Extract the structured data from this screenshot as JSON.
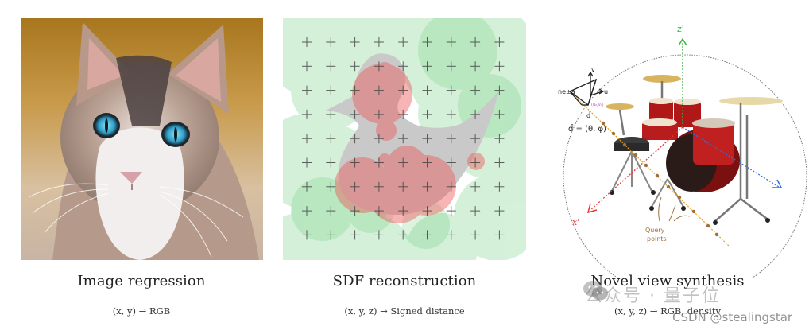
{
  "panels": [
    {
      "id": "image-regression",
      "title": "Image regression",
      "formula": "(x, y) → RGB",
      "visual": "photo of a tabby-and-white kitten with blue eyes on blurred warm background"
    },
    {
      "id": "sdf-reconstruction",
      "title": "SDF reconstruction",
      "formula": "(x, y, z) → Signed distance",
      "visual": "9x9 grid of + sample points over a grey duck silhouette; red circles inside shape, green circles outside",
      "grid": {
        "rows": 9,
        "cols": 9
      },
      "colors": {
        "inside": "#e57373",
        "outside": "#4caf50",
        "shape": "#c8c8c8"
      }
    },
    {
      "id": "novel-view-synthesis",
      "title": "Novel view synthesis",
      "formula": "(x, y, z) → RGB, density",
      "visual": "drum kit inside dotted sphere with camera ray and query points",
      "annotations": {
        "z_axis": "z'",
        "x_axis": "x'",
        "camera_label": "ne±a",
        "v_label": "v",
        "u_label": "u",
        "pixel_label": "(u₀,v₀)",
        "dir_label": "d̂",
        "dir_formula": "d̂ = (θ, φ)",
        "query_label_1": "Query",
        "query_label_2": "points"
      },
      "colors": {
        "z_axis": "#3cb043",
        "x_axis": "#e53935",
        "y_axis": "#2f6fe0",
        "ray": "#e0a030",
        "query": "#a0703a"
      }
    }
  ],
  "watermarks": {
    "wechat": "公众号 · 量子位",
    "csdn": "CSDN @stealingstar"
  }
}
